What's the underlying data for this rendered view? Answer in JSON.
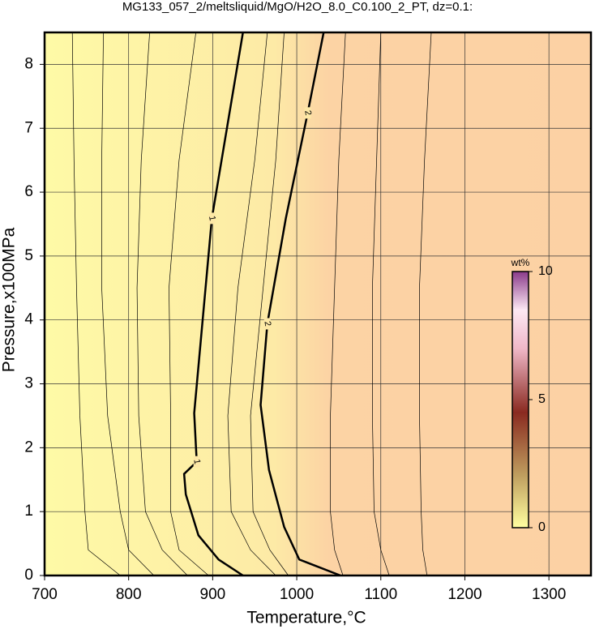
{
  "chart_data": {
    "type": "contour",
    "title": "MG133_057_2/meltsliquid/MgO/H2O_8.0_C0.100_2_PT, dz=0.1:",
    "x_label": "Temperature,°C",
    "y_label": "Pressure,x100MPa",
    "xlim": [
      700,
      1350
    ],
    "ylim": [
      0,
      8.5
    ],
    "xticks": [
      700,
      800,
      900,
      1000,
      1100,
      1200,
      1300
    ],
    "yticks": [
      0,
      1,
      2,
      3,
      4,
      5,
      6,
      7,
      8
    ],
    "grid": true,
    "contours": [
      {
        "level": 1,
        "x": [
          936,
          899,
          878,
          881,
          866,
          868,
          883,
          907,
          936
        ],
        "y": [
          8.5,
          5.59,
          2.54,
          1.78,
          1.59,
          1.27,
          0.63,
          0.25,
          0
        ]
      },
      {
        "level": 2,
        "x": [
          1032,
          1013,
          987,
          965,
          957,
          967,
          985,
          1003,
          1052
        ],
        "y": [
          8.5,
          7.24,
          5.59,
          3.94,
          2.67,
          1.65,
          0.76,
          0.25,
          0
        ]
      },
      {
        "x": [
          733,
          735,
          738,
          742,
          748,
          752,
          790
        ],
        "y": [
          8.5,
          6.5,
          4.5,
          2.5,
          1,
          0.4,
          0
        ]
      },
      {
        "x": [
          770,
          768,
          768,
          775,
          790,
          800,
          830
        ],
        "y": [
          8.5,
          6.5,
          4.5,
          2.5,
          1,
          0.4,
          0
        ]
      },
      {
        "x": [
          825,
          815,
          810,
          812,
          820,
          840,
          870
        ],
        "y": [
          8.5,
          6.5,
          4.5,
          2.5,
          1,
          0.4,
          0
        ]
      },
      {
        "x": [
          880,
          860,
          848,
          850,
          850,
          860,
          895
        ],
        "y": [
          8.5,
          6.5,
          4.5,
          2.5,
          1,
          0.4,
          0
        ]
      },
      {
        "x": [
          965,
          950,
          930,
          918,
          922,
          945,
          975
        ],
        "y": [
          8.5,
          6.5,
          4.5,
          2.5,
          1,
          0.4,
          0
        ]
      },
      {
        "x": [
          985,
          975,
          960,
          945,
          948,
          968,
          990
        ],
        "y": [
          8.5,
          6.5,
          4.5,
          2.5,
          1,
          0.4,
          0
        ]
      },
      {
        "x": [
          1058,
          1050,
          1045,
          1040,
          1040,
          1045,
          1055
        ],
        "y": [
          8.5,
          6.5,
          4.5,
          2.5,
          1,
          0.4,
          0
        ]
      },
      {
        "x": [
          1100,
          1095,
          1090,
          1090,
          1092,
          1100,
          1110
        ],
        "y": [
          8.5,
          6.5,
          4.5,
          2.5,
          1,
          0.4,
          0
        ]
      },
      {
        "x": [
          1160,
          1152,
          1146,
          1146,
          1148,
          1150,
          1155
        ],
        "y": [
          8.5,
          6.5,
          4.5,
          2.5,
          1,
          0.4,
          0
        ]
      }
    ],
    "colorbar": {
      "label": "wt%",
      "lim": [
        0,
        10
      ],
      "ticks": [
        0,
        5,
        10
      ]
    }
  }
}
